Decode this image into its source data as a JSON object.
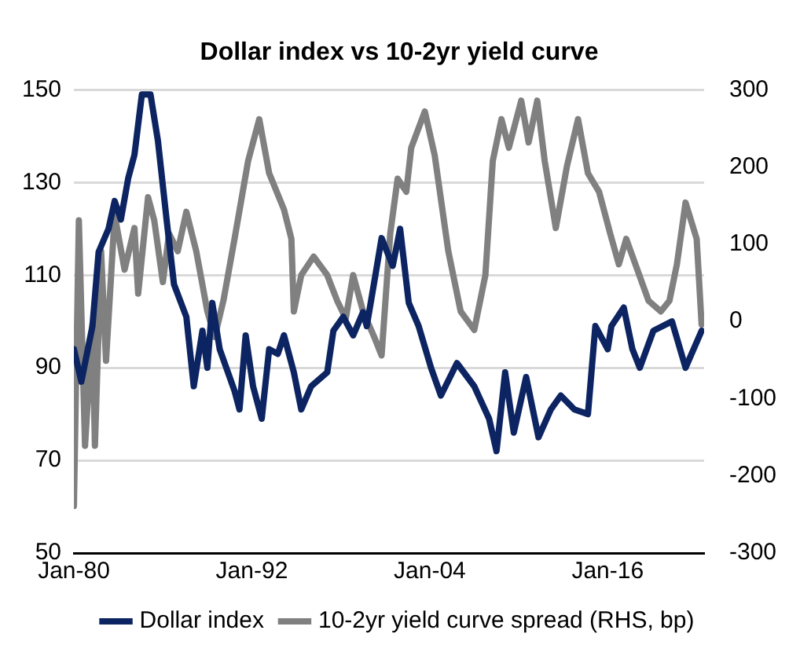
{
  "chart_data": {
    "type": "line",
    "title": "Dollar index vs 10-2yr yield curve",
    "xlim": [
      "1980-01",
      "2022-07"
    ],
    "xticks": [
      {
        "value": "1980-01",
        "label": "Jan-80"
      },
      {
        "value": "1992-01",
        "label": "Jan-92"
      },
      {
        "value": "2004-01",
        "label": "Jan-04"
      },
      {
        "value": "2016-01",
        "label": "Jan-16"
      }
    ],
    "ylim": [
      50,
      150
    ],
    "yticks": [
      50,
      70,
      90,
      110,
      130,
      150
    ],
    "y2lim": [
      -300,
      300
    ],
    "y2ticks": [
      -300,
      -200,
      -100,
      0,
      100,
      200,
      300
    ],
    "grid": "y",
    "legend": "bottom",
    "marker": "none",
    "line_style": "solid",
    "series": [
      {
        "name": "Dollar index",
        "color": "#0c2461",
        "x": [
          "1980-01",
          "1980-07",
          "1981-04",
          "1981-09",
          "1982-05",
          "1982-10",
          "1983-03",
          "1983-09",
          "1984-02",
          "1984-08",
          "1985-03",
          "1985-09",
          "1986-04",
          "1986-10",
          "1987-08",
          "1988-02",
          "1988-09",
          "1989-01",
          "1989-05",
          "1989-11",
          "1990-11",
          "1991-03",
          "1991-08",
          "1992-02",
          "1992-09",
          "1993-03",
          "1993-10",
          "1994-03",
          "1994-11",
          "1995-05",
          "1996-01",
          "1997-02",
          "1997-07",
          "1998-03",
          "1998-11",
          "1999-07",
          "1999-10",
          "2000-05",
          "2000-10",
          "2001-07",
          "2002-01",
          "2002-08",
          "2003-04",
          "2004-02",
          "2004-10",
          "2005-11",
          "2007-01",
          "2008-01",
          "2008-07",
          "2009-02",
          "2009-09",
          "2010-07",
          "2011-05",
          "2012-03",
          "2012-11",
          "2013-10",
          "2014-09",
          "2015-03",
          "2016-01",
          "2016-04",
          "2017-02",
          "2017-09",
          "2018-03",
          "2019-02",
          "2020-05",
          "2021-04",
          "2022-05"
        ],
        "values": [
          94,
          87,
          99,
          115,
          120,
          126,
          122,
          131,
          136,
          149,
          149,
          139,
          122,
          108,
          101,
          86,
          98,
          90,
          104,
          94,
          85,
          81,
          97,
          86,
          79,
          94,
          93,
          97,
          89,
          81,
          86,
          89,
          98,
          101,
          97,
          102,
          99,
          110,
          118,
          112,
          120,
          104,
          99,
          90,
          84,
          91,
          86,
          79,
          72,
          89,
          76,
          88,
          75,
          81,
          84,
          81,
          80,
          99,
          94,
          99,
          103,
          94,
          90,
          98,
          100,
          90,
          98
        ]
      },
      {
        "name": "10-2yr yield curve spread (RHS, bp)",
        "color": "#808080",
        "axis": "y2",
        "x": [
          "1980-01",
          "1980-05",
          "1980-10",
          "1981-04",
          "1981-06",
          "1981-11",
          "1982-03",
          "1982-10",
          "1983-06",
          "1984-02",
          "1984-05",
          "1985-01",
          "1985-06",
          "1986-01",
          "1986-06",
          "1987-01",
          "1987-08",
          "1988-04",
          "1989-01",
          "1989-07",
          "1990-02",
          "1990-11",
          "1991-10",
          "1992-07",
          "1993-03",
          "1994-03",
          "1994-09",
          "1994-11",
          "1995-05",
          "1996-03",
          "1997-02",
          "1997-10",
          "1998-05",
          "1998-11",
          "1999-07",
          "2000-04",
          "2000-10",
          "2001-05",
          "2001-11",
          "2002-06",
          "2002-10",
          "2003-09",
          "2004-05",
          "2005-04",
          "2006-02",
          "2007-01",
          "2007-10",
          "2008-04",
          "2008-11",
          "2009-05",
          "2010-03",
          "2010-09",
          "2011-04",
          "2011-10",
          "2012-07",
          "2013-04",
          "2014-01",
          "2014-09",
          "2015-06",
          "2016-03",
          "2016-10",
          "2017-04",
          "2018-01",
          "2018-10",
          "2019-08",
          "2020-03",
          "2020-09",
          "2021-04",
          "2022-01",
          "2022-05"
        ],
        "values": [
          -239,
          131,
          -161,
          -4,
          -161,
          91,
          -51,
          138,
          67,
          121,
          36,
          161,
          131,
          51,
          114,
          91,
          142,
          91,
          13,
          -20,
          27,
          107,
          208,
          262,
          192,
          145,
          107,
          13,
          60,
          84,
          60,
          27,
          4,
          60,
          13,
          -20,
          -44,
          114,
          185,
          168,
          225,
          272,
          215,
          91,
          13,
          -11,
          60,
          208,
          262,
          225,
          286,
          232,
          286,
          208,
          121,
          201,
          262,
          192,
          168,
          114,
          74,
          107,
          67,
          27,
          13,
          27,
          74,
          154,
          107,
          -4
        ]
      }
    ]
  }
}
